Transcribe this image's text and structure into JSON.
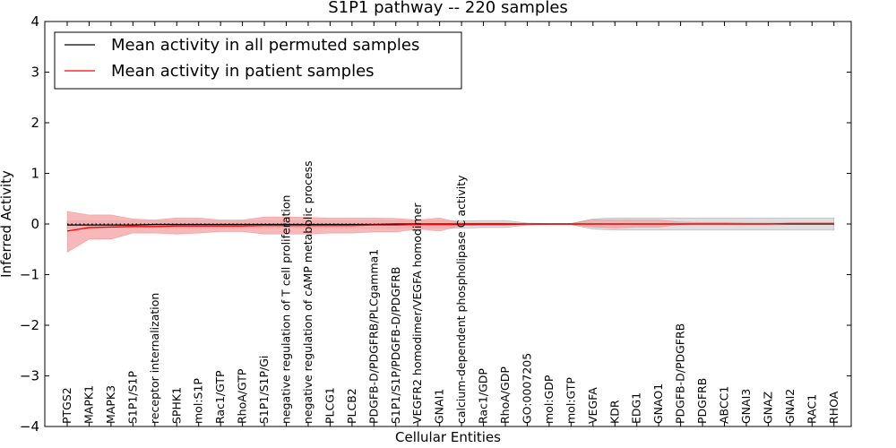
{
  "chart_data": {
    "type": "line",
    "title": "S1P1 pathway -- 220 samples",
    "xlabel": "Cellular Entities",
    "ylabel": "Inferred Activity",
    "ylim": [
      -4,
      4
    ],
    "yticks": [
      4,
      3,
      2,
      1,
      0,
      -1,
      -2,
      -3,
      -4
    ],
    "ytick_labels": [
      "4",
      "3",
      "2",
      "1",
      "0",
      "−1",
      "−2",
      "−3",
      "−4"
    ],
    "legend_position": "upper-left",
    "categories": [
      "PTGS2",
      "MAPK1",
      "MAPK3",
      "S1P1/S1P",
      "receptor internalization",
      "SPHK1",
      "mol:S1P",
      "Rac1/GTP",
      "RhoA/GTP",
      "S1P1/S1P/Gi",
      "negative regulation of T cell proliferation",
      "negative regulation of cAMP metabolic process",
      "PLCG1",
      "PLCB2",
      "PDGFB-D/PDGFRB/PLCgamma1",
      "S1P1/S1P/PDGFB-D/PDGFRB",
      "VEGFR2 homodimer/VEGFA homodimer",
      "GNAI1",
      "calcium-dependent phospholipase C activity",
      "Rac1/GDP",
      "RhoA/GDP",
      "GO:0007205",
      "mol:GDP",
      "mol:GTP",
      "VEGFA",
      "KDR",
      "EDG1",
      "GNAO1",
      "PDGFB-D/PDGFRB",
      "PDGFRB",
      "ABCC1",
      "GNAI3",
      "GNAZ",
      "GNAI2",
      "RAC1",
      "RHOA"
    ],
    "series": [
      {
        "name": "Mean activity in all permuted samples",
        "color": "#000000",
        "band_color": "#d3d3d3",
        "values": [
          -0.02,
          -0.02,
          -0.02,
          -0.02,
          -0.01,
          -0.01,
          -0.01,
          -0.01,
          -0.01,
          -0.01,
          -0.01,
          -0.01,
          -0.01,
          -0.01,
          -0.01,
          0.0,
          0.0,
          0.0,
          0.0,
          0.0,
          0.0,
          0.0,
          0.0,
          0.0,
          0.0,
          0.0,
          0.0,
          0.0,
          0.0,
          0.0,
          0.0,
          0.0,
          0.0,
          0.0,
          0.0,
          0.0
        ],
        "lower": [
          -0.08,
          -0.08,
          -0.08,
          -0.08,
          -0.08,
          -0.08,
          -0.08,
          -0.08,
          -0.08,
          -0.08,
          -0.08,
          -0.08,
          -0.08,
          -0.08,
          -0.08,
          -0.08,
          -0.08,
          -0.08,
          -0.08,
          -0.07,
          -0.07,
          -0.02,
          -0.01,
          -0.01,
          -0.1,
          -0.12,
          -0.12,
          -0.12,
          -0.12,
          -0.12,
          -0.12,
          -0.12,
          -0.12,
          -0.12,
          -0.12,
          -0.12
        ],
        "upper": [
          0.06,
          0.06,
          0.06,
          0.06,
          0.06,
          0.06,
          0.06,
          0.06,
          0.06,
          0.06,
          0.06,
          0.06,
          0.06,
          0.06,
          0.06,
          0.06,
          0.06,
          0.06,
          0.06,
          0.07,
          0.07,
          0.02,
          0.01,
          0.01,
          0.1,
          0.12,
          0.12,
          0.12,
          0.12,
          0.12,
          0.12,
          0.12,
          0.12,
          0.12,
          0.12,
          0.12
        ]
      },
      {
        "name": "Mean activity in patient samples",
        "color": "#ff0000",
        "band_color": "#f4a6a6",
        "values": [
          -0.14,
          -0.07,
          -0.06,
          -0.05,
          -0.05,
          -0.04,
          -0.04,
          -0.04,
          -0.04,
          -0.03,
          -0.03,
          -0.03,
          -0.03,
          -0.03,
          -0.02,
          -0.02,
          -0.01,
          -0.01,
          -0.01,
          -0.01,
          -0.01,
          0.0,
          0.0,
          0.0,
          0.0,
          0.0,
          0.0,
          0.0,
          0.0,
          0.0,
          0.0,
          0.0,
          0.0,
          0.01,
          0.01,
          0.01
        ],
        "lower": [
          -0.56,
          -0.3,
          -0.3,
          -0.18,
          -0.18,
          -0.2,
          -0.18,
          -0.15,
          -0.15,
          -0.2,
          -0.2,
          -0.2,
          -0.18,
          -0.18,
          -0.16,
          -0.16,
          -0.1,
          -0.14,
          -0.03,
          -0.02,
          -0.02,
          -0.01,
          -0.01,
          -0.01,
          -0.06,
          -0.08,
          -0.06,
          -0.06,
          -0.01,
          0.0,
          0.0,
          0.0,
          0.0,
          0.0,
          0.0,
          0.0
        ],
        "upper": [
          0.25,
          0.18,
          0.18,
          0.1,
          0.08,
          0.12,
          0.12,
          0.08,
          0.08,
          0.14,
          0.14,
          0.13,
          0.12,
          0.12,
          0.12,
          0.11,
          0.08,
          0.12,
          0.02,
          0.02,
          0.02,
          0.01,
          0.01,
          0.01,
          0.08,
          0.08,
          0.08,
          0.08,
          0.04,
          0.03,
          0.03,
          0.02,
          0.02,
          0.02,
          0.02,
          0.02
        ]
      }
    ],
    "reference_line": {
      "style": "dotted",
      "color": "#000000"
    }
  }
}
